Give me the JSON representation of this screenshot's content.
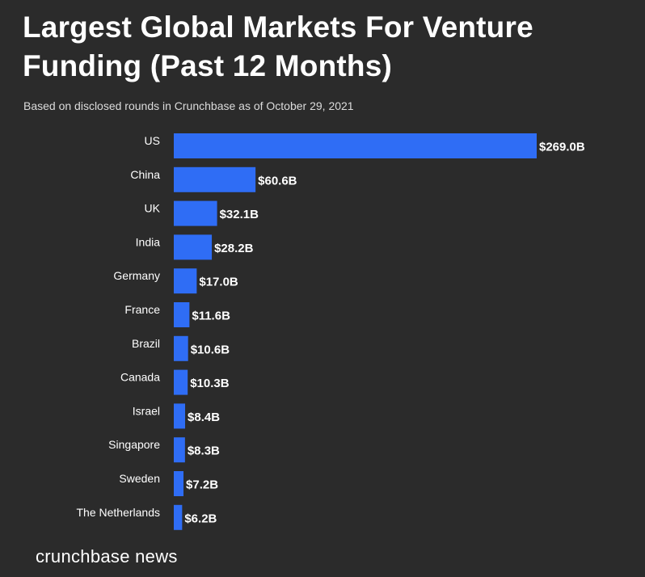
{
  "header": {
    "title": "Largest Global Markets For Venture Funding (Past 12 Months)",
    "subtitle": "Based on disclosed rounds in Crunchbase as of October 29, 2021"
  },
  "footer": {
    "brand": "crunchbase news"
  },
  "colors": {
    "background": "#2b2b2b",
    "bar": "#2f6df5",
    "text": "#ffffff"
  },
  "chart_data": {
    "type": "bar",
    "orientation": "horizontal",
    "title": "Largest Global Markets For Venture Funding (Past 12 Months)",
    "subtitle": "Based on disclosed rounds in Crunchbase as of October 29, 2021",
    "categories": [
      "US",
      "China",
      "UK",
      "India",
      "Germany",
      "France",
      "Brazil",
      "Canada",
      "Israel",
      "Singapore",
      "Sweden",
      "The Netherlands"
    ],
    "values": [
      269.0,
      60.6,
      32.1,
      28.2,
      17.0,
      11.6,
      10.6,
      10.3,
      8.4,
      8.3,
      7.2,
      6.2
    ],
    "value_labels": [
      "$269.0B",
      "$60.6B",
      "$32.1B",
      "$28.2B",
      "$17.0B",
      "$11.6B",
      "$10.6B",
      "$10.3B",
      "$8.4B",
      "$8.3B",
      "$7.2B",
      "$6.2B"
    ],
    "unit": "B",
    "xlabel": "",
    "ylabel": "",
    "xlim": [
      0,
      269.0
    ],
    "grid": false,
    "legend": "none"
  }
}
